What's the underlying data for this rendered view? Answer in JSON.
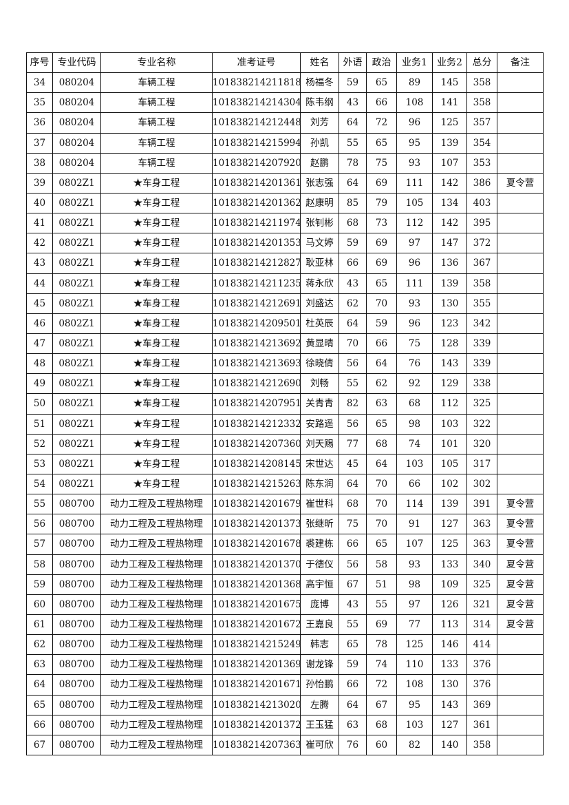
{
  "headers": [
    "序号",
    "专业代码",
    "专业名称",
    "准考证号",
    "姓名",
    "外语",
    "政治",
    "业务1",
    "业务2",
    "总分",
    "备注"
  ],
  "rows": [
    [
      "34",
      "080204",
      "车辆工程",
      "101838214211818",
      "杨福冬",
      "59",
      "65",
      "89",
      "145",
      "358",
      ""
    ],
    [
      "35",
      "080204",
      "车辆工程",
      "101838214214304",
      "陈韦纲",
      "43",
      "66",
      "108",
      "141",
      "358",
      ""
    ],
    [
      "36",
      "080204",
      "车辆工程",
      "101838214212448",
      "刘芳",
      "64",
      "72",
      "96",
      "125",
      "357",
      ""
    ],
    [
      "37",
      "080204",
      "车辆工程",
      "101838214215994",
      "孙凯",
      "55",
      "65",
      "95",
      "139",
      "354",
      ""
    ],
    [
      "38",
      "080204",
      "车辆工程",
      "101838214207920",
      "赵鹏",
      "78",
      "75",
      "93",
      "107",
      "353",
      ""
    ],
    [
      "39",
      "0802Z1",
      "★车身工程",
      "101838214201361",
      "张志强",
      "64",
      "69",
      "111",
      "142",
      "386",
      "夏令营"
    ],
    [
      "40",
      "0802Z1",
      "★车身工程",
      "101838214201362",
      "赵康明",
      "85",
      "79",
      "105",
      "134",
      "403",
      ""
    ],
    [
      "41",
      "0802Z1",
      "★车身工程",
      "101838214211974",
      "张钊彬",
      "68",
      "73",
      "112",
      "142",
      "395",
      ""
    ],
    [
      "42",
      "0802Z1",
      "★车身工程",
      "101838214201353",
      "马文婷",
      "59",
      "69",
      "97",
      "147",
      "372",
      ""
    ],
    [
      "43",
      "0802Z1",
      "★车身工程",
      "101838214212827",
      "耿亚林",
      "66",
      "69",
      "96",
      "136",
      "367",
      ""
    ],
    [
      "44",
      "0802Z1",
      "★车身工程",
      "101838214211235",
      "蒋永欣",
      "43",
      "65",
      "111",
      "139",
      "358",
      ""
    ],
    [
      "45",
      "0802Z1",
      "★车身工程",
      "101838214212691",
      "刘盛达",
      "62",
      "70",
      "93",
      "130",
      "355",
      ""
    ],
    [
      "46",
      "0802Z1",
      "★车身工程",
      "101838214209501",
      "杜英辰",
      "64",
      "59",
      "96",
      "123",
      "342",
      ""
    ],
    [
      "47",
      "0802Z1",
      "★车身工程",
      "101838214213692",
      "黄显晴",
      "70",
      "66",
      "75",
      "128",
      "339",
      ""
    ],
    [
      "48",
      "0802Z1",
      "★车身工程",
      "101838214213693",
      "徐晓倩",
      "56",
      "64",
      "76",
      "143",
      "339",
      ""
    ],
    [
      "49",
      "0802Z1",
      "★车身工程",
      "101838214212690",
      "刘畅",
      "55",
      "62",
      "92",
      "129",
      "338",
      ""
    ],
    [
      "50",
      "0802Z1",
      "★车身工程",
      "101838214207951",
      "关青青",
      "82",
      "63",
      "68",
      "112",
      "325",
      ""
    ],
    [
      "51",
      "0802Z1",
      "★车身工程",
      "101838214212332",
      "安路遥",
      "56",
      "65",
      "98",
      "103",
      "322",
      ""
    ],
    [
      "52",
      "0802Z1",
      "★车身工程",
      "101838214207360",
      "刘天赐",
      "77",
      "68",
      "74",
      "101",
      "320",
      ""
    ],
    [
      "53",
      "0802Z1",
      "★车身工程",
      "101838214208145",
      "宋世达",
      "45",
      "64",
      "103",
      "105",
      "317",
      ""
    ],
    [
      "54",
      "0802Z1",
      "★车身工程",
      "101838214215263",
      "陈东润",
      "64",
      "70",
      "66",
      "102",
      "302",
      ""
    ],
    [
      "55",
      "080700",
      "动力工程及工程热物理",
      "101838214201679",
      "崔世科",
      "68",
      "70",
      "114",
      "139",
      "391",
      "夏令营"
    ],
    [
      "56",
      "080700",
      "动力工程及工程热物理",
      "101838214201373",
      "张继昕",
      "75",
      "70",
      "91",
      "127",
      "363",
      "夏令营"
    ],
    [
      "57",
      "080700",
      "动力工程及工程热物理",
      "101838214201678",
      "裘建栋",
      "66",
      "65",
      "107",
      "125",
      "363",
      "夏令营"
    ],
    [
      "58",
      "080700",
      "动力工程及工程热物理",
      "101838214201370",
      "于德仪",
      "56",
      "58",
      "93",
      "133",
      "340",
      "夏令营"
    ],
    [
      "59",
      "080700",
      "动力工程及工程热物理",
      "101838214201368",
      "高宇恒",
      "67",
      "51",
      "98",
      "109",
      "325",
      "夏令营"
    ],
    [
      "60",
      "080700",
      "动力工程及工程热物理",
      "101838214201675",
      "庞博",
      "43",
      "55",
      "97",
      "126",
      "321",
      "夏令营"
    ],
    [
      "61",
      "080700",
      "动力工程及工程热物理",
      "101838214201672",
      "王嘉良",
      "55",
      "69",
      "77",
      "113",
      "314",
      "夏令营"
    ],
    [
      "62",
      "080700",
      "动力工程及工程热物理",
      "101838214215249",
      "韩志",
      "65",
      "78",
      "125",
      "146",
      "414",
      ""
    ],
    [
      "63",
      "080700",
      "动力工程及工程热物理",
      "101838214201369",
      "谢龙锋",
      "59",
      "74",
      "110",
      "133",
      "376",
      ""
    ],
    [
      "64",
      "080700",
      "动力工程及工程热物理",
      "101838214201671",
      "孙怡鹏",
      "66",
      "72",
      "108",
      "130",
      "376",
      ""
    ],
    [
      "65",
      "080700",
      "动力工程及工程热物理",
      "101838214213020",
      "左腾",
      "64",
      "67",
      "95",
      "143",
      "369",
      ""
    ],
    [
      "66",
      "080700",
      "动力工程及工程热物理",
      "101838214201372",
      "王玉猛",
      "63",
      "68",
      "103",
      "127",
      "361",
      ""
    ],
    [
      "67",
      "080700",
      "动力工程及工程热物理",
      "101838214207363",
      "崔可欣",
      "76",
      "60",
      "82",
      "140",
      "358",
      ""
    ]
  ]
}
